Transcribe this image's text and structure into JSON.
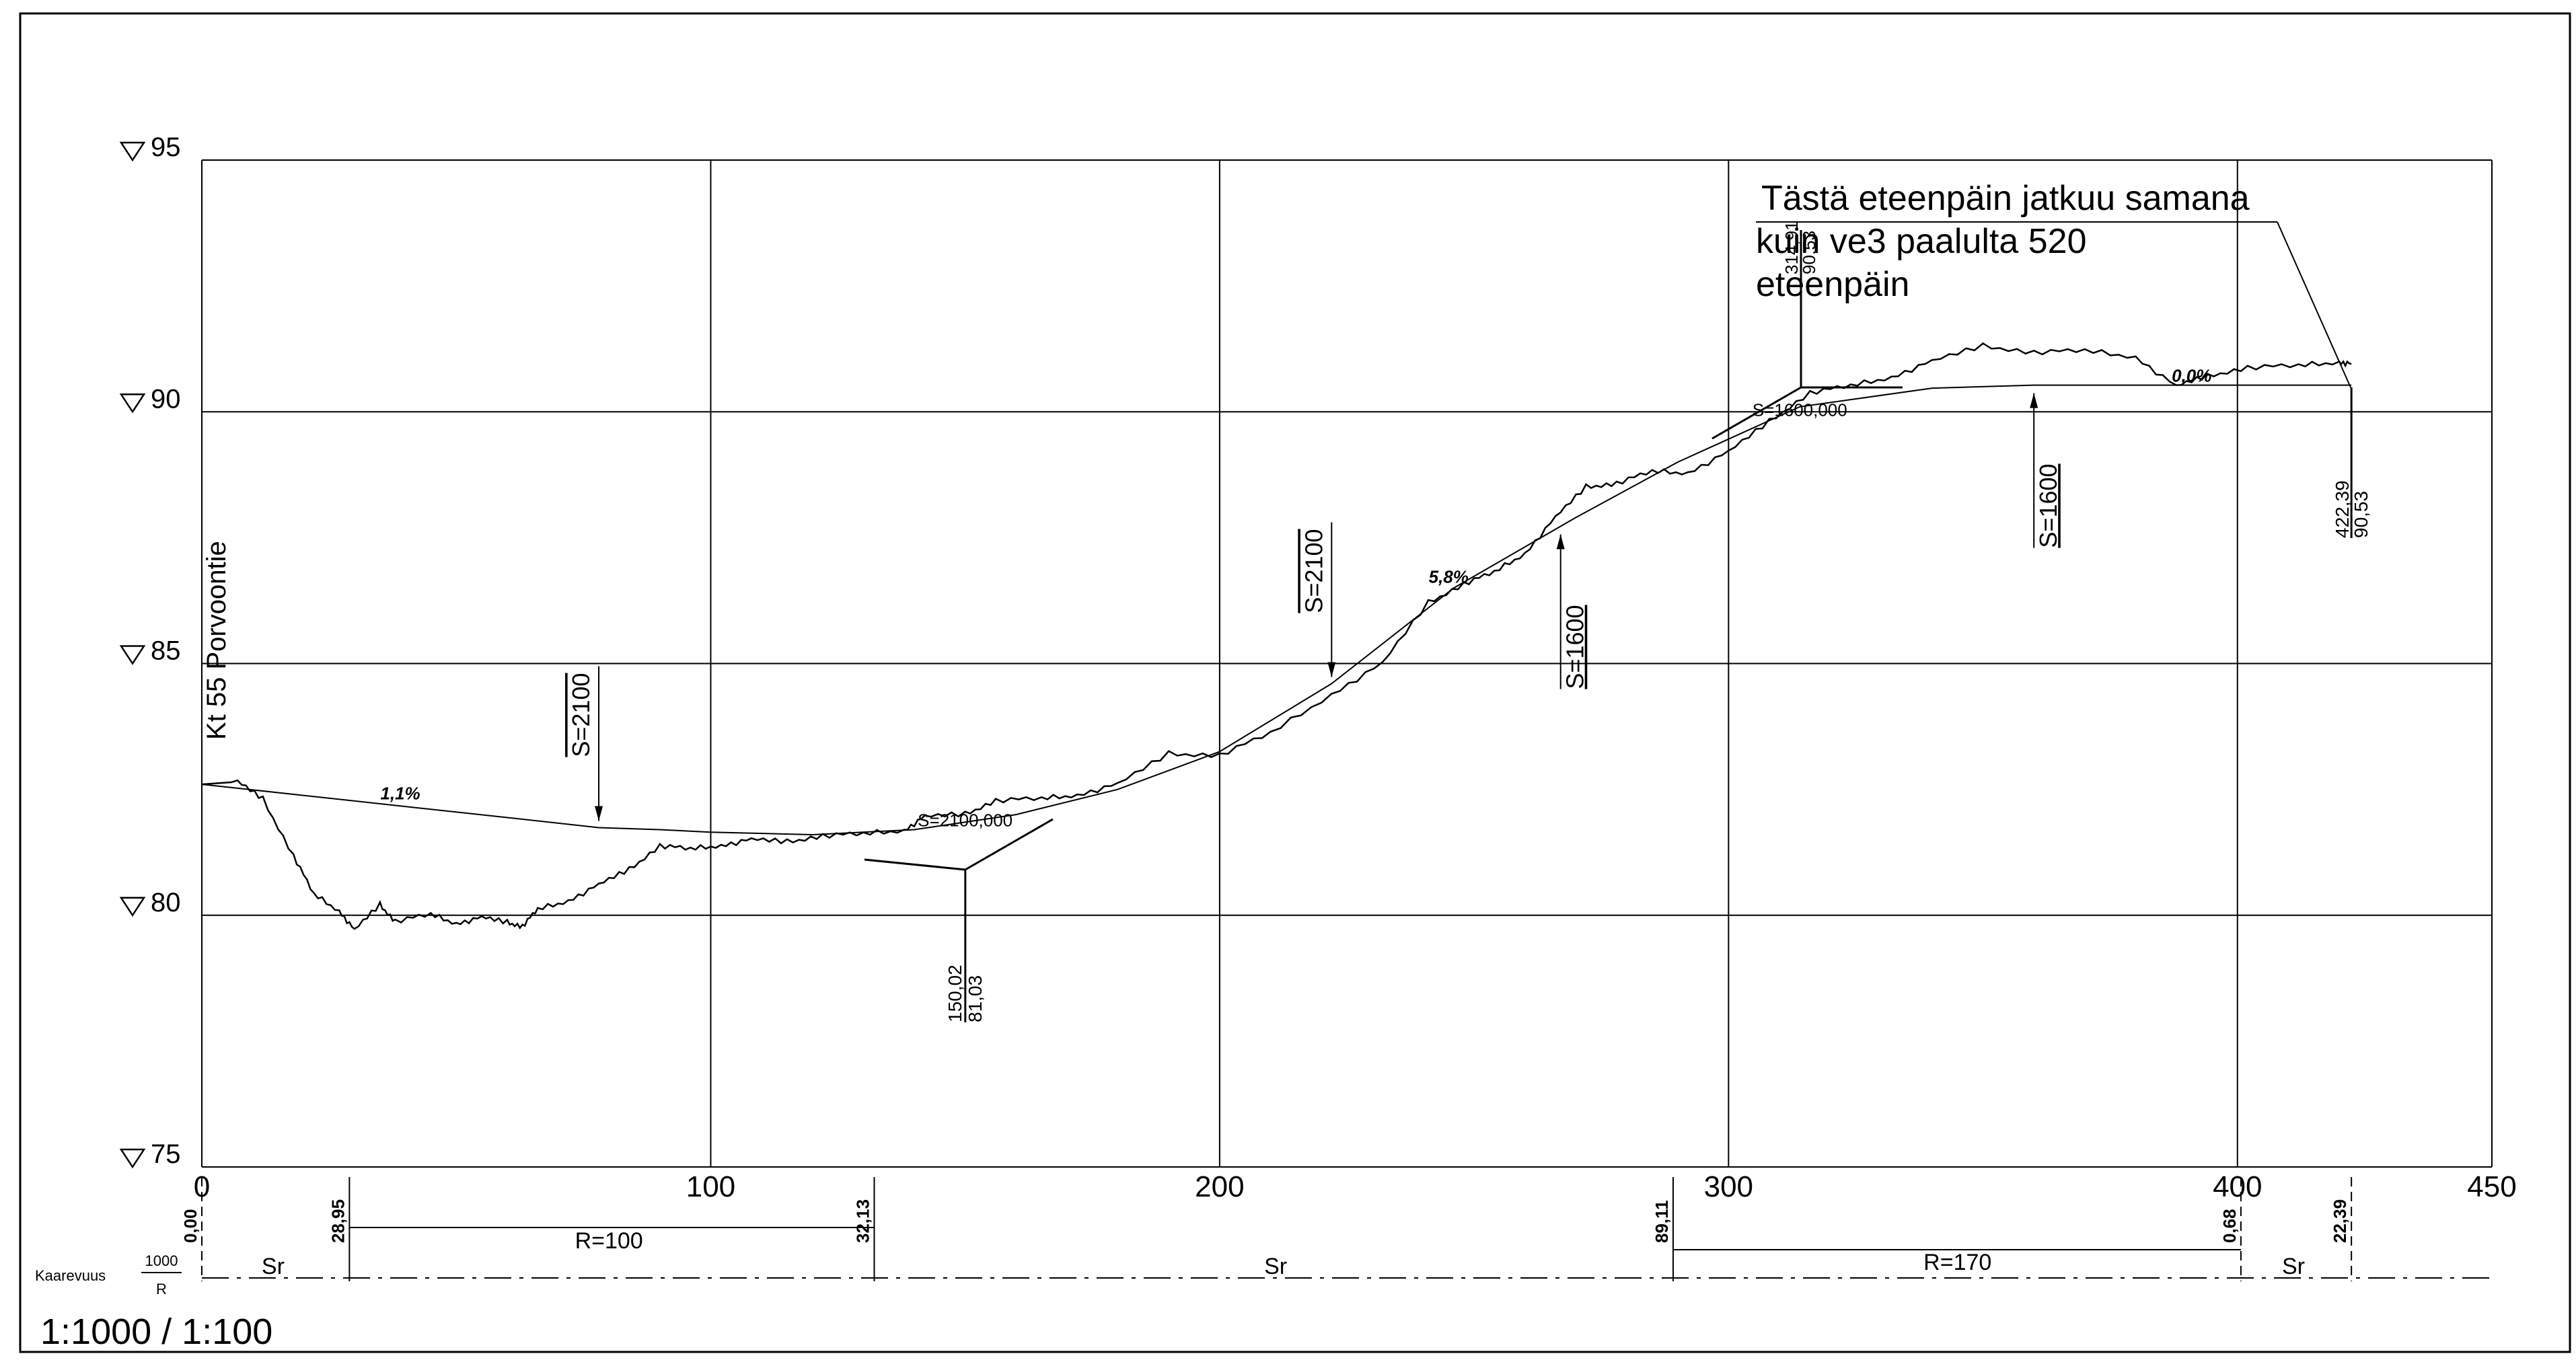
{
  "drawing": {
    "road_name": "Kt 55 Porvoontie",
    "scale": "1:1000 / 1:100",
    "note_lines": [
      "Tästä eteenpäin jatkuu samana",
      "kuin ve3 paalulta 520",
      "eteenpäin"
    ]
  },
  "axes": {
    "x_ticks": [
      {
        "value": 0,
        "label": "0"
      },
      {
        "value": 100,
        "label": "100"
      },
      {
        "value": 200,
        "label": "200"
      },
      {
        "value": 300,
        "label": "300"
      },
      {
        "value": 400,
        "label": "400"
      },
      {
        "value": 450,
        "label": "450"
      }
    ],
    "y_ticks": [
      {
        "value": 95,
        "label": "95"
      },
      {
        "value": 90,
        "label": "90"
      },
      {
        "value": 85,
        "label": "85"
      },
      {
        "value": 80,
        "label": "80"
      },
      {
        "value": 75,
        "label": "75"
      }
    ],
    "xlim": [
      0,
      450
    ],
    "ylim": [
      75,
      95
    ]
  },
  "grade_labels": [
    {
      "x": 39,
      "y": 82.3,
      "label": "1,1%"
    },
    {
      "x": 245,
      "y": 86.6,
      "label": "5,8%"
    },
    {
      "x": 391,
      "y": 90.6,
      "label": "0,0%"
    }
  ],
  "vertical_curves": [
    {
      "x": 78,
      "label": "S=2100",
      "dir": "down"
    },
    {
      "x": 222,
      "label": "S=2100",
      "dir": "down"
    },
    {
      "x": 267,
      "label": "S=1600",
      "dir": "up"
    },
    {
      "x": 360,
      "label": "S=1600",
      "dir": "up"
    }
  ],
  "curve_points": [
    {
      "x": 150,
      "y": 81.85,
      "label": "S=2100,000"
    },
    {
      "x": 314,
      "y": 90.4,
      "label": "S=1600,000"
    }
  ],
  "elevation_markers": [
    {
      "x": 150.02,
      "sta": "150,02",
      "elev": "81,03"
    },
    {
      "x": 314,
      "sta": "314,91",
      "elev": "90,53"
    },
    {
      "x": 422.39,
      "sta": "422,39",
      "elev": "90,53"
    }
  ],
  "curvature_band": {
    "label": "Kaarevuus",
    "fraction_top": "1000",
    "fraction_bottom": "R",
    "breaks": [
      {
        "x": 0,
        "label": "0,00"
      },
      {
        "x": 29,
        "label": "28,95"
      },
      {
        "x": 132.13,
        "label": "32,13"
      },
      {
        "x": 289.11,
        "label": "89,11"
      },
      {
        "x": 400.68,
        "label": "0,68"
      },
      {
        "x": 422.39,
        "label": "22,39"
      }
    ],
    "segments": [
      {
        "x": 14,
        "label": "Sr"
      },
      {
        "x": 80,
        "label": "R=100"
      },
      {
        "x": 211,
        "label": "Sr"
      },
      {
        "x": 345,
        "label": "R=170"
      },
      {
        "x": 411,
        "label": "Sr"
      }
    ]
  },
  "profile": {
    "design_line": [
      [
        0,
        82.6
      ],
      [
        20,
        82.38
      ],
      [
        40,
        82.16
      ],
      [
        60,
        81.94
      ],
      [
        78,
        81.74
      ],
      [
        90,
        81.7
      ],
      [
        100,
        81.65
      ],
      [
        120,
        81.6
      ],
      [
        140,
        81.7
      ],
      [
        160,
        82.0
      ],
      [
        180,
        82.5
      ],
      [
        200,
        83.25
      ],
      [
        222,
        84.6
      ],
      [
        246,
        86.5
      ],
      [
        270,
        87.9
      ],
      [
        290,
        89.0
      ],
      [
        314,
        90.1
      ],
      [
        340,
        90.47
      ],
      [
        360,
        90.53
      ],
      [
        422.39,
        90.53
      ]
    ],
    "ground_line": [
      [
        0,
        82.6
      ],
      [
        7,
        82.65
      ],
      [
        12,
        82.3
      ],
      [
        18,
        81.2
      ],
      [
        22,
        80.4
      ],
      [
        27,
        80.1
      ],
      [
        30,
        79.7
      ],
      [
        35,
        80.2
      ],
      [
        38,
        79.9
      ],
      [
        45,
        80.0
      ],
      [
        50,
        79.85
      ],
      [
        55,
        79.95
      ],
      [
        60,
        79.85
      ],
      [
        63,
        79.8
      ],
      [
        66,
        80.1
      ],
      [
        72,
        80.3
      ],
      [
        78,
        80.6
      ],
      [
        84,
        80.9
      ],
      [
        90,
        81.4
      ],
      [
        96,
        81.3
      ],
      [
        102,
        81.4
      ],
      [
        108,
        81.5
      ],
      [
        115,
        81.45
      ],
      [
        122,
        81.6
      ],
      [
        130,
        81.6
      ],
      [
        138,
        81.7
      ],
      [
        142,
        81.95
      ],
      [
        150,
        82.0
      ],
      [
        156,
        82.3
      ],
      [
        165,
        82.3
      ],
      [
        172,
        82.4
      ],
      [
        180,
        82.6
      ],
      [
        190,
        83.2
      ],
      [
        200,
        83.2
      ],
      [
        210,
        83.6
      ],
      [
        222,
        84.4
      ],
      [
        232,
        85.0
      ],
      [
        241,
        86.2
      ],
      [
        248,
        86.6
      ],
      [
        254,
        86.8
      ],
      [
        260,
        87.2
      ],
      [
        266,
        87.9
      ],
      [
        272,
        88.5
      ],
      [
        278,
        88.6
      ],
      [
        285,
        88.8
      ],
      [
        292,
        88.8
      ],
      [
        300,
        89.2
      ],
      [
        308,
        89.8
      ],
      [
        316,
        90.4
      ],
      [
        324,
        90.5
      ],
      [
        332,
        90.7
      ],
      [
        340,
        91.0
      ],
      [
        350,
        91.3
      ],
      [
        360,
        91.2
      ],
      [
        370,
        91.2
      ],
      [
        380,
        91.1
      ],
      [
        388,
        90.5
      ],
      [
        394,
        90.7
      ],
      [
        402,
        90.9
      ],
      [
        412,
        90.9
      ],
      [
        420,
        91.0
      ],
      [
        422.39,
        90.95
      ]
    ]
  },
  "chart_data": {
    "type": "line",
    "title": "",
    "xlabel": "",
    "ylabel": "",
    "xlim": [
      0,
      450
    ],
    "ylim": [
      75,
      95
    ],
    "grid": true
  }
}
